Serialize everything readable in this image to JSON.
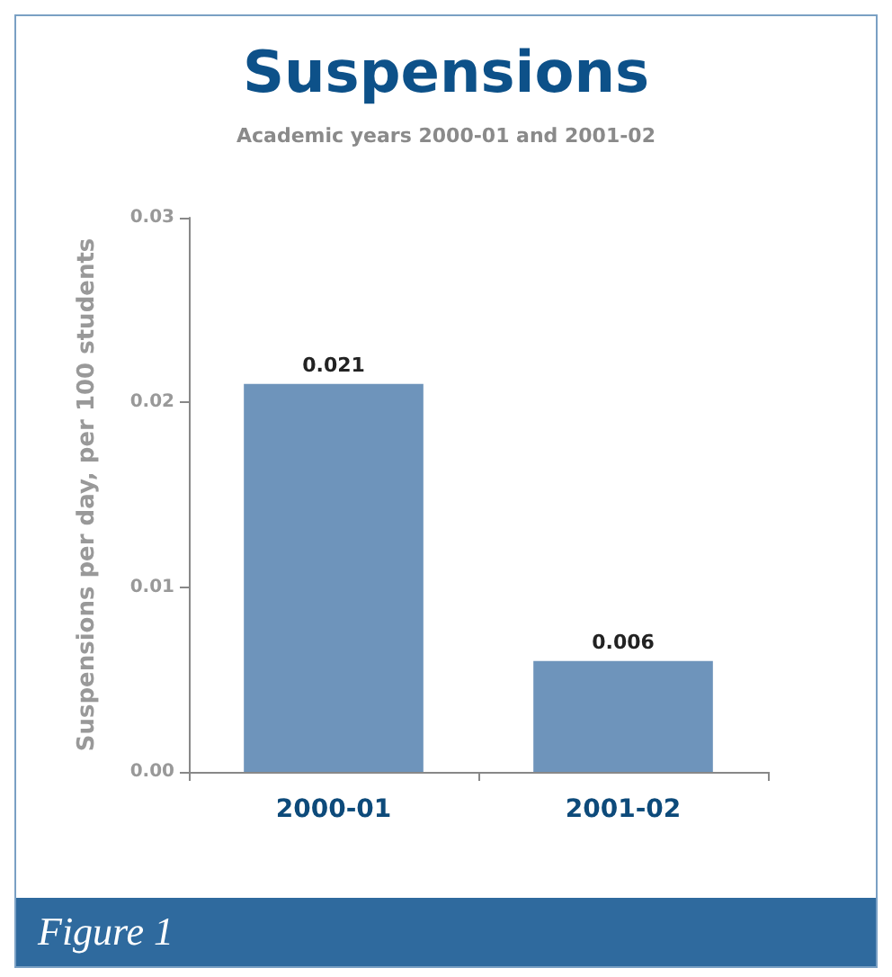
{
  "chart_data": {
    "type": "bar",
    "title": "Suspensions",
    "subtitle": "Academic years 2000-01 and 2001-02",
    "ylabel": "Suspensions per day, per 100 students",
    "categories": [
      "2000-01",
      "2001-02"
    ],
    "values": [
      0.021,
      0.006
    ],
    "color": "#6e94bb",
    "ylim": [
      0,
      0.03
    ],
    "yticks": [
      "0.00",
      "0.01",
      "0.02",
      "0.03"
    ],
    "data_labels": true,
    "grid": false,
    "annotations": [
      "Figure 1"
    ]
  }
}
